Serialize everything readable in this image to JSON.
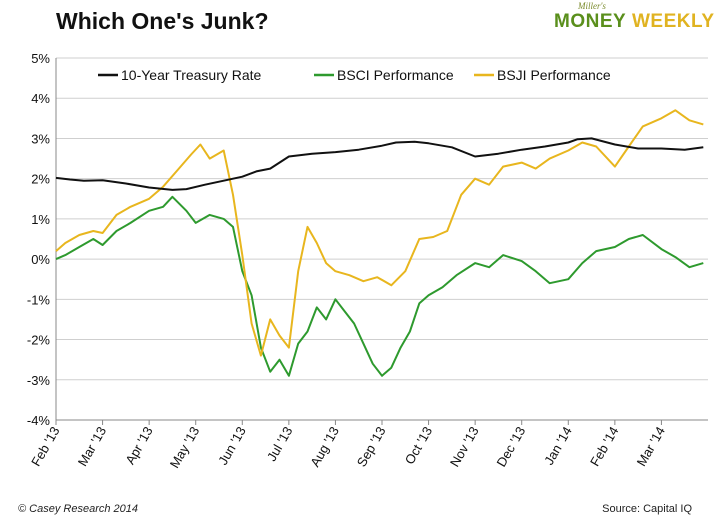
{
  "title": "Which One's Junk?",
  "logo": {
    "small": "Miller's",
    "money": "MONEY",
    "weekly": "WEEKLY"
  },
  "footer": {
    "left": "© Casey Research 2014",
    "right": "Source: Capital IQ"
  },
  "colors": {
    "treasury": "#111111",
    "bsci": "#2e9a2e",
    "bsji": "#e8b61e",
    "grid": "#cfcfcf",
    "axis": "#888888"
  },
  "chart_data": {
    "type": "line",
    "title": "Which One's Junk?",
    "xlabel": "",
    "ylabel": "",
    "ylim": [
      -4,
      5
    ],
    "yticks": [
      5,
      4,
      3,
      2,
      1,
      0,
      -1,
      -2,
      -3,
      -4
    ],
    "ytick_labels": [
      "5%",
      "4%",
      "3%",
      "2%",
      "1%",
      "0%",
      "-1%",
      "-2%",
      "-3%",
      "-4%"
    ],
    "xlim": [
      0,
      14
    ],
    "xticks": [
      0,
      1,
      2,
      3,
      4,
      5,
      6,
      7,
      8,
      9,
      10,
      11,
      12,
      13
    ],
    "xtick_labels": [
      "Feb '13",
      "Mar '13",
      "Apr '13",
      "May '13",
      "Jun '13",
      "Jul '13",
      "Aug '13",
      "Sep '13",
      "Oct '13",
      "Nov '13",
      "Dec '13",
      "Jan '14",
      "Feb '14",
      "Mar '14"
    ],
    "legend": [
      "10-Year Treasury Rate",
      "BSCI Performance",
      "BSJI Performance"
    ],
    "series": [
      {
        "name": "10-Year Treasury Rate",
        "x": [
          0,
          0.3,
          0.6,
          1.0,
          1.5,
          2.0,
          2.5,
          2.8,
          3.2,
          3.6,
          4.0,
          4.3,
          4.6,
          5.0,
          5.5,
          6.0,
          6.5,
          7.0,
          7.3,
          7.7,
          8.0,
          8.5,
          9.0,
          9.5,
          10.0,
          10.5,
          11.0,
          11.2,
          11.5,
          12.0,
          12.5,
          13.0,
          13.5,
          13.9
        ],
        "y": [
          2.02,
          1.98,
          1.95,
          1.96,
          1.88,
          1.78,
          1.72,
          1.74,
          1.85,
          1.95,
          2.05,
          2.18,
          2.25,
          2.55,
          2.62,
          2.66,
          2.72,
          2.82,
          2.9,
          2.92,
          2.88,
          2.78,
          2.55,
          2.62,
          2.72,
          2.8,
          2.9,
          2.98,
          3.0,
          2.85,
          2.75,
          2.75,
          2.72,
          2.78
        ]
      },
      {
        "name": "BSCI Performance",
        "x": [
          0,
          0.2,
          0.5,
          0.8,
          1.0,
          1.3,
          1.6,
          2.0,
          2.3,
          2.5,
          2.8,
          3.0,
          3.3,
          3.6,
          3.8,
          4.0,
          4.2,
          4.4,
          4.6,
          4.8,
          5.0,
          5.2,
          5.4,
          5.6,
          5.8,
          6.0,
          6.2,
          6.4,
          6.6,
          6.8,
          7.0,
          7.2,
          7.4,
          7.6,
          7.8,
          8.0,
          8.3,
          8.6,
          9.0,
          9.3,
          9.6,
          10.0,
          10.3,
          10.6,
          11.0,
          11.3,
          11.6,
          12.0,
          12.3,
          12.6,
          13.0,
          13.3,
          13.6,
          13.9
        ],
        "y": [
          0.0,
          0.1,
          0.3,
          0.5,
          0.35,
          0.7,
          0.9,
          1.2,
          1.3,
          1.55,
          1.2,
          0.9,
          1.1,
          1.0,
          0.8,
          -0.3,
          -0.9,
          -2.2,
          -2.8,
          -2.5,
          -2.9,
          -2.1,
          -1.8,
          -1.2,
          -1.5,
          -1.0,
          -1.3,
          -1.6,
          -2.1,
          -2.6,
          -2.9,
          -2.7,
          -2.2,
          -1.8,
          -1.1,
          -0.9,
          -0.7,
          -0.4,
          -0.1,
          -0.2,
          0.1,
          -0.05,
          -0.3,
          -0.6,
          -0.5,
          -0.1,
          0.2,
          0.3,
          0.5,
          0.6,
          0.25,
          0.05,
          -0.2,
          -0.1
        ]
      },
      {
        "name": "BSJI Performance",
        "x": [
          0,
          0.2,
          0.5,
          0.8,
          1.0,
          1.3,
          1.6,
          2.0,
          2.3,
          2.6,
          2.9,
          3.1,
          3.3,
          3.6,
          3.8,
          4.0,
          4.2,
          4.4,
          4.6,
          4.8,
          5.0,
          5.2,
          5.4,
          5.6,
          5.8,
          6.0,
          6.3,
          6.6,
          6.9,
          7.2,
          7.5,
          7.8,
          8.1,
          8.4,
          8.7,
          9.0,
          9.3,
          9.6,
          10.0,
          10.3,
          10.6,
          11.0,
          11.3,
          11.6,
          12.0,
          12.3,
          12.6,
          13.0,
          13.3,
          13.6,
          13.9
        ],
        "y": [
          0.2,
          0.4,
          0.6,
          0.7,
          0.65,
          1.1,
          1.3,
          1.5,
          1.8,
          2.2,
          2.6,
          2.85,
          2.5,
          2.7,
          1.6,
          0.1,
          -1.6,
          -2.4,
          -1.5,
          -1.9,
          -2.2,
          -0.3,
          0.8,
          0.4,
          -0.1,
          -0.3,
          -0.4,
          -0.55,
          -0.45,
          -0.65,
          -0.3,
          0.5,
          0.55,
          0.7,
          1.6,
          2.0,
          1.85,
          2.3,
          2.4,
          2.25,
          2.5,
          2.7,
          2.9,
          2.8,
          2.3,
          2.8,
          3.3,
          3.5,
          3.7,
          3.45,
          3.35
        ]
      }
    ]
  }
}
